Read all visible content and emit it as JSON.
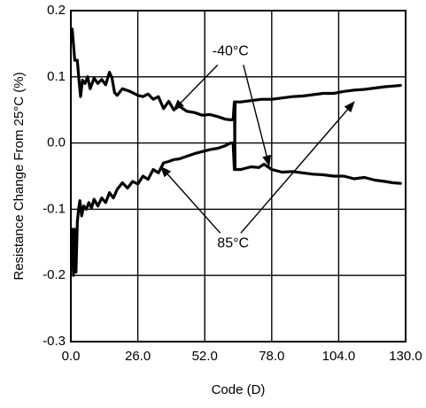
{
  "chart_data": {
    "type": "line",
    "xlabel": "Code (D)",
    "ylabel": "Resistance Change From 25°C (%)",
    "xlim": [
      0,
      130
    ],
    "ylim": [
      -0.3,
      0.2
    ],
    "grid": true,
    "x_ticks": [
      {
        "value": 0,
        "label": "0.0"
      },
      {
        "value": 26,
        "label": "26.0"
      },
      {
        "value": 52,
        "label": "52.0"
      },
      {
        "value": 78,
        "label": "78.0"
      },
      {
        "value": 104,
        "label": "104.0"
      },
      {
        "value": 130,
        "label": "130.0"
      }
    ],
    "y_ticks": [
      {
        "value": 0.2,
        "label": "0.2"
      },
      {
        "value": 0.1,
        "label": "0.1"
      },
      {
        "value": 0.0,
        "label": "0.0"
      },
      {
        "value": -0.1,
        "label": "-0.1"
      },
      {
        "value": -0.2,
        "label": "-0.2"
      },
      {
        "value": -0.3,
        "label": "-0.3"
      }
    ],
    "series": [
      {
        "name": "-40°C",
        "points": [
          [
            0.5,
            0.172
          ],
          [
            1.0,
            0.15
          ],
          [
            1.5,
            0.125
          ],
          [
            2.5,
            0.125
          ],
          [
            3.2,
            0.093
          ],
          [
            3.8,
            0.07
          ],
          [
            4.5,
            0.095
          ],
          [
            5.5,
            0.09
          ],
          [
            6.5,
            0.1
          ],
          [
            7.5,
            0.082
          ],
          [
            9.0,
            0.098
          ],
          [
            10.5,
            0.09
          ],
          [
            12.0,
            0.096
          ],
          [
            13.5,
            0.088
          ],
          [
            15.0,
            0.107
          ],
          [
            16.0,
            0.098
          ],
          [
            17.0,
            0.076
          ],
          [
            18.0,
            0.072
          ],
          [
            20.0,
            0.082
          ],
          [
            23.0,
            0.078
          ],
          [
            26.0,
            0.072
          ],
          [
            28.0,
            0.07
          ],
          [
            30.0,
            0.074
          ],
          [
            32.0,
            0.066
          ],
          [
            34.0,
            0.07
          ],
          [
            36.0,
            0.052
          ],
          [
            38.0,
            0.063
          ],
          [
            40.0,
            0.05
          ],
          [
            42.0,
            0.056
          ],
          [
            45.0,
            0.048
          ],
          [
            48.0,
            0.046
          ],
          [
            51.0,
            0.042
          ],
          [
            54.0,
            0.043
          ],
          [
            57.0,
            0.04
          ],
          [
            60.0,
            0.036
          ],
          [
            62.0,
            0.035
          ],
          [
            63.0,
            0.035
          ],
          [
            63.5,
            0.062
          ],
          [
            63.8,
            -0.04
          ],
          [
            66.0,
            -0.04
          ],
          [
            70.0,
            -0.036
          ],
          [
            73.0,
            -0.037
          ],
          [
            75.0,
            -0.032
          ],
          [
            78.0,
            -0.04
          ],
          [
            82.0,
            -0.044
          ],
          [
            86.0,
            -0.043
          ],
          [
            90.0,
            -0.045
          ],
          [
            94.0,
            -0.047
          ],
          [
            98.0,
            -0.048
          ],
          [
            102.0,
            -0.05
          ],
          [
            106.0,
            -0.05
          ],
          [
            110.0,
            -0.054
          ],
          [
            114.0,
            -0.052
          ],
          [
            118.0,
            -0.056
          ],
          [
            122.0,
            -0.058
          ],
          [
            125.0,
            -0.06
          ],
          [
            128.0,
            -0.061
          ]
        ]
      },
      {
        "name": "85°C",
        "points": [
          [
            0.3,
            -0.13
          ],
          [
            0.7,
            -0.16
          ],
          [
            1.0,
            -0.2
          ],
          [
            1.3,
            -0.13
          ],
          [
            1.6,
            -0.17
          ],
          [
            2.0,
            -0.195
          ],
          [
            2.5,
            -0.12
          ],
          [
            3.0,
            -0.1
          ],
          [
            3.5,
            -0.087
          ],
          [
            4.2,
            -0.11
          ],
          [
            5.0,
            -0.095
          ],
          [
            6.0,
            -0.1
          ],
          [
            7.0,
            -0.09
          ],
          [
            8.0,
            -0.098
          ],
          [
            9.0,
            -0.085
          ],
          [
            10.5,
            -0.095
          ],
          [
            12.0,
            -0.083
          ],
          [
            13.5,
            -0.09
          ],
          [
            15.0,
            -0.075
          ],
          [
            16.5,
            -0.083
          ],
          [
            18.0,
            -0.07
          ],
          [
            20.0,
            -0.06
          ],
          [
            22.0,
            -0.068
          ],
          [
            24.0,
            -0.058
          ],
          [
            26.0,
            -0.062
          ],
          [
            28.0,
            -0.05
          ],
          [
            30.0,
            -0.055
          ],
          [
            32.0,
            -0.04
          ],
          [
            34.0,
            -0.045
          ],
          [
            36.0,
            -0.03
          ],
          [
            38.0,
            -0.028
          ],
          [
            40.0,
            -0.025
          ],
          [
            42.0,
            -0.024
          ],
          [
            45.0,
            -0.02
          ],
          [
            48.0,
            -0.016
          ],
          [
            51.0,
            -0.013
          ],
          [
            54.0,
            -0.01
          ],
          [
            57.0,
            -0.008
          ],
          [
            60.0,
            -0.004
          ],
          [
            62.0,
            0.0
          ],
          [
            63.0,
            0.0
          ],
          [
            63.5,
            -0.04
          ],
          [
            63.8,
            0.062
          ],
          [
            66.0,
            0.062
          ],
          [
            70.0,
            0.064
          ],
          [
            74.0,
            0.066
          ],
          [
            78.0,
            0.066
          ],
          [
            82.0,
            0.068
          ],
          [
            86.0,
            0.07
          ],
          [
            90.0,
            0.071
          ],
          [
            94.0,
            0.073
          ],
          [
            98.0,
            0.075
          ],
          [
            102.0,
            0.075
          ],
          [
            106.0,
            0.078
          ],
          [
            110.0,
            0.08
          ],
          [
            114.0,
            0.081
          ],
          [
            118.0,
            0.083
          ],
          [
            122.0,
            0.085
          ],
          [
            125.0,
            0.086
          ],
          [
            128.0,
            0.087
          ]
        ]
      }
    ],
    "annotations": [
      {
        "text": "-40°C",
        "anchor": {
          "x": 62,
          "y": 0.138
        },
        "arrows": [
          {
            "from": {
              "x": 57,
              "y": 0.118
            },
            "to": {
              "x": 40,
              "y": 0.05
            }
          },
          {
            "from": {
              "x": 67,
              "y": 0.118
            },
            "to": {
              "x": 77,
              "y": -0.034
            }
          }
        ]
      },
      {
        "text": "85°C",
        "anchor": {
          "x": 63,
          "y": -0.152
        },
        "arrows": [
          {
            "from": {
              "x": 58,
              "y": -0.136
            },
            "to": {
              "x": 35,
              "y": -0.036
            }
          },
          {
            "from": {
              "x": 66,
              "y": -0.136
            },
            "to": {
              "x": 110,
              "y": 0.062
            }
          }
        ]
      }
    ],
    "colors": {
      "line": "#000000",
      "grid": "#000000",
      "background": "#ffffff"
    }
  }
}
